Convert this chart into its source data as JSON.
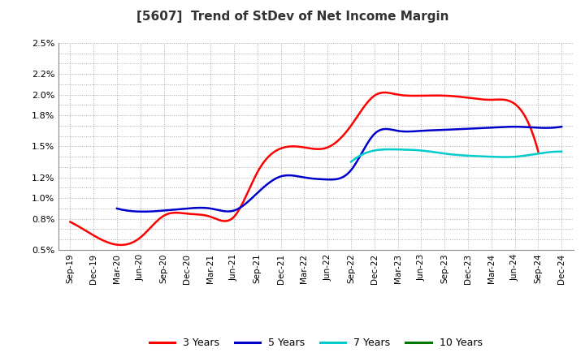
{
  "title": "[5607]  Trend of StDev of Net Income Margin",
  "title_fontsize": 11,
  "title_fontweight": "bold",
  "background_color": "#ffffff",
  "grid_color": "#aaaaaa",
  "x_labels": [
    "Sep-19",
    "Dec-19",
    "Mar-20",
    "Jun-20",
    "Sep-20",
    "Dec-20",
    "Mar-21",
    "Jun-21",
    "Sep-21",
    "Dec-21",
    "Mar-22",
    "Jun-22",
    "Sep-22",
    "Dec-22",
    "Mar-23",
    "Jun-23",
    "Sep-23",
    "Dec-23",
    "Mar-24",
    "Jun-24",
    "Sep-24",
    "Dec-24"
  ],
  "ylim": [
    0.005,
    0.025
  ],
  "label_ticks": [
    0.005,
    0.008,
    0.01,
    0.012,
    0.015,
    0.018,
    0.02,
    0.022,
    0.025
  ],
  "grid_ticks": [
    0.005,
    0.006,
    0.007,
    0.008,
    0.009,
    0.01,
    0.011,
    0.012,
    0.013,
    0.014,
    0.015,
    0.016,
    0.017,
    0.018,
    0.019,
    0.02,
    0.021,
    0.022,
    0.023,
    0.024,
    0.025
  ],
  "series": {
    "3 Years": {
      "color": "#ff0000",
      "values": [
        0.0077,
        0.0064,
        0.0055,
        0.0062,
        0.0083,
        0.0085,
        0.0082,
        0.0082,
        0.0125,
        0.0148,
        0.0149,
        0.0149,
        0.017,
        0.0199,
        0.02,
        0.0199,
        0.0199,
        0.0197,
        0.0195,
        0.0191,
        0.0145,
        null
      ]
    },
    "5 Years": {
      "color": "#0000cc",
      "values": [
        null,
        null,
        0.009,
        0.0087,
        0.0088,
        0.009,
        0.009,
        0.0088,
        0.0105,
        0.0121,
        0.012,
        0.0118,
        0.0127,
        0.0162,
        0.0165,
        0.0165,
        0.0166,
        0.0167,
        0.0168,
        0.0169,
        0.0168,
        0.0169
      ]
    },
    "7 Years": {
      "color": "#00cccc",
      "values": [
        null,
        null,
        null,
        null,
        null,
        null,
        null,
        null,
        null,
        null,
        null,
        null,
        0.0135,
        0.0146,
        0.0147,
        0.0146,
        0.0143,
        0.0141,
        0.014,
        0.014,
        0.0143,
        0.0145
      ]
    },
    "10 Years": {
      "color": "#007700",
      "values": [
        null,
        null,
        null,
        null,
        null,
        null,
        null,
        null,
        null,
        null,
        null,
        null,
        null,
        null,
        null,
        null,
        null,
        null,
        null,
        null,
        null,
        null
      ]
    }
  },
  "legend_labels": [
    "3 Years",
    "5 Years",
    "7 Years",
    "10 Years"
  ],
  "legend_colors": [
    "#ff0000",
    "#0000cc",
    "#00cccc",
    "#007700"
  ]
}
